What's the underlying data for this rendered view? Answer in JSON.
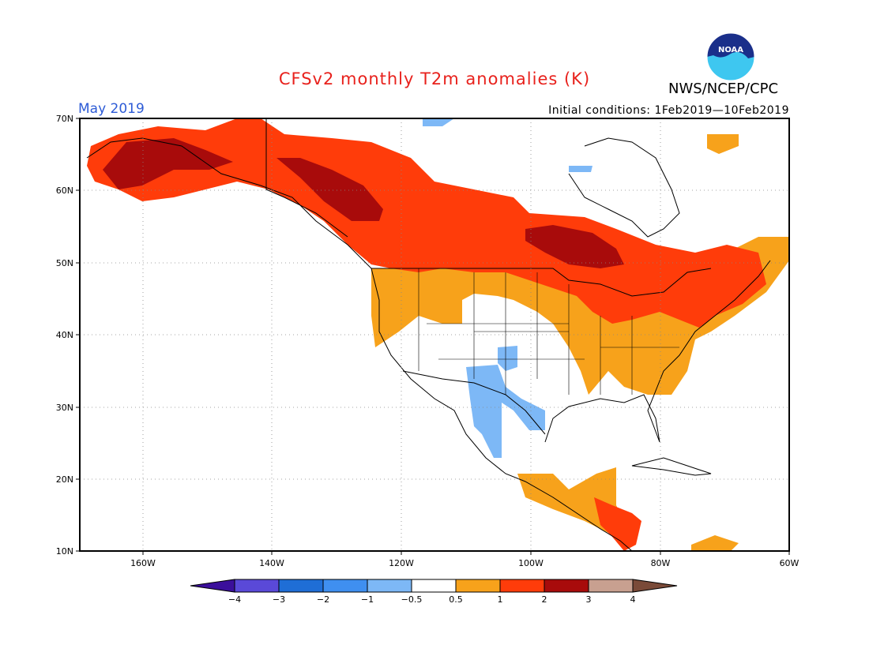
{
  "title": "CFSv2 monthly T2m anomalies (K)",
  "org": "NWS/NCEP/CPC",
  "logo_text": "NOAA",
  "valid_month": "May 2019",
  "initial_conditions": "Initial conditions: 1Feb2019—10Feb2019",
  "lat_labels": [
    "70N",
    "60N",
    "50N",
    "40N",
    "30N",
    "20N",
    "10N"
  ],
  "lon_labels": [
    "160W",
    "140W",
    "120W",
    "100W",
    "80W",
    "60W"
  ],
  "colorbar": {
    "labels": [
      "−4",
      "−3",
      "−2",
      "−1",
      "−0.5",
      "0.5",
      "1",
      "2",
      "3",
      "4"
    ],
    "colors": [
      "#3b0f9b",
      "#5a49d8",
      "#1f6ed6",
      "#3f8ff0",
      "#7db8f6",
      "#ffffff",
      "#f7a21b",
      "#ff3c0a",
      "#a80b0b",
      "#c8a090",
      "#7a4a38"
    ]
  },
  "colors": {
    "warm_05_1": "#f7a21b",
    "warm_1_2": "#ff3c0a",
    "warm_2_3": "#a80b0b",
    "cool_05_1": "#7db8f6",
    "title_red": "#e8211c",
    "month_blue": "#2d5bd6"
  }
}
